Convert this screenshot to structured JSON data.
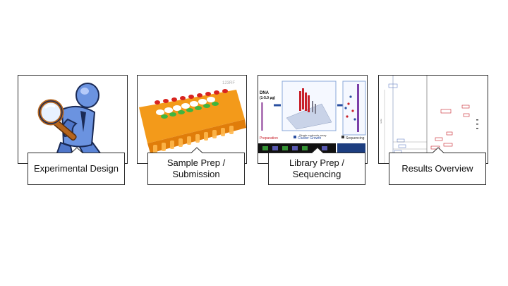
{
  "steps": [
    {
      "label": "Experimental Design"
    },
    {
      "label": "Sample Prep / Submission"
    },
    {
      "label": "Library Prep / Sequencing"
    },
    {
      "label": "Results Overview"
    }
  ],
  "colors": {
    "border": "#2b2b2b",
    "figure_blue": "#4f76c9",
    "plate_orange": "#f39a1a",
    "tube_red": "#d8241f",
    "tube_green": "#3fb53f",
    "seq_red": "#c8202a",
    "seq_blue": "#2a4fa0"
  }
}
